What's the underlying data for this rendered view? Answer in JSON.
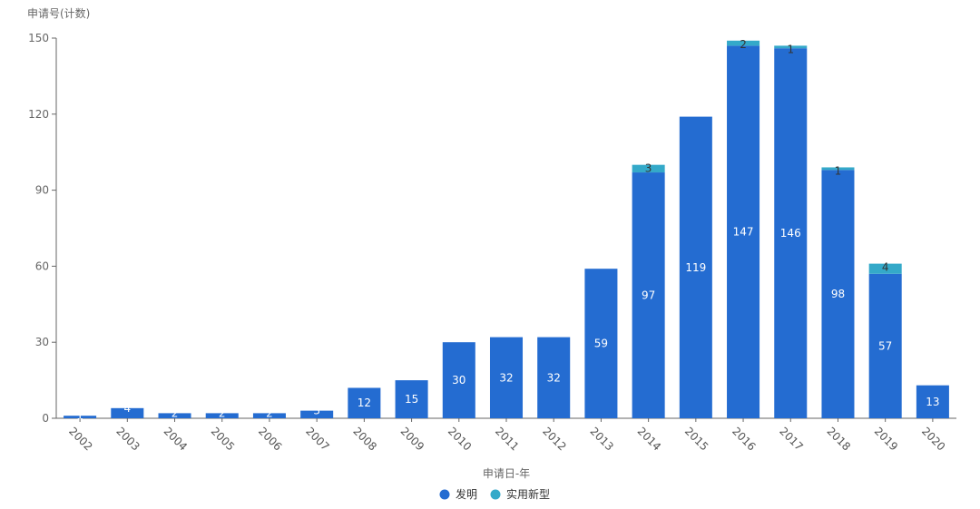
{
  "chart_data": {
    "type": "bar",
    "stacked": true,
    "ylabel": "申请号(计数)",
    "xlabel": "申请日-年",
    "ylim": [
      0,
      150
    ],
    "yticks": [
      0,
      30,
      60,
      90,
      120,
      150
    ],
    "grid": false,
    "legend_position": "bottom-center",
    "categories": [
      "2002",
      "2003",
      "2004",
      "2005",
      "2006",
      "2007",
      "2008",
      "2009",
      "2010",
      "2011",
      "2012",
      "2013",
      "2014",
      "2015",
      "2016",
      "2017",
      "2018",
      "2019",
      "2020"
    ],
    "series": [
      {
        "name": "发明",
        "color": "#246cd1",
        "values": [
          1,
          4,
          2,
          2,
          2,
          3,
          12,
          15,
          30,
          32,
          32,
          59,
          97,
          119,
          147,
          146,
          98,
          57,
          13
        ]
      },
      {
        "name": "实用新型",
        "color": "#34a9c9",
        "values": [
          0,
          0,
          0,
          0,
          0,
          0,
          0,
          0,
          0,
          0,
          0,
          0,
          3,
          0,
          2,
          1,
          1,
          4,
          0
        ]
      }
    ]
  }
}
